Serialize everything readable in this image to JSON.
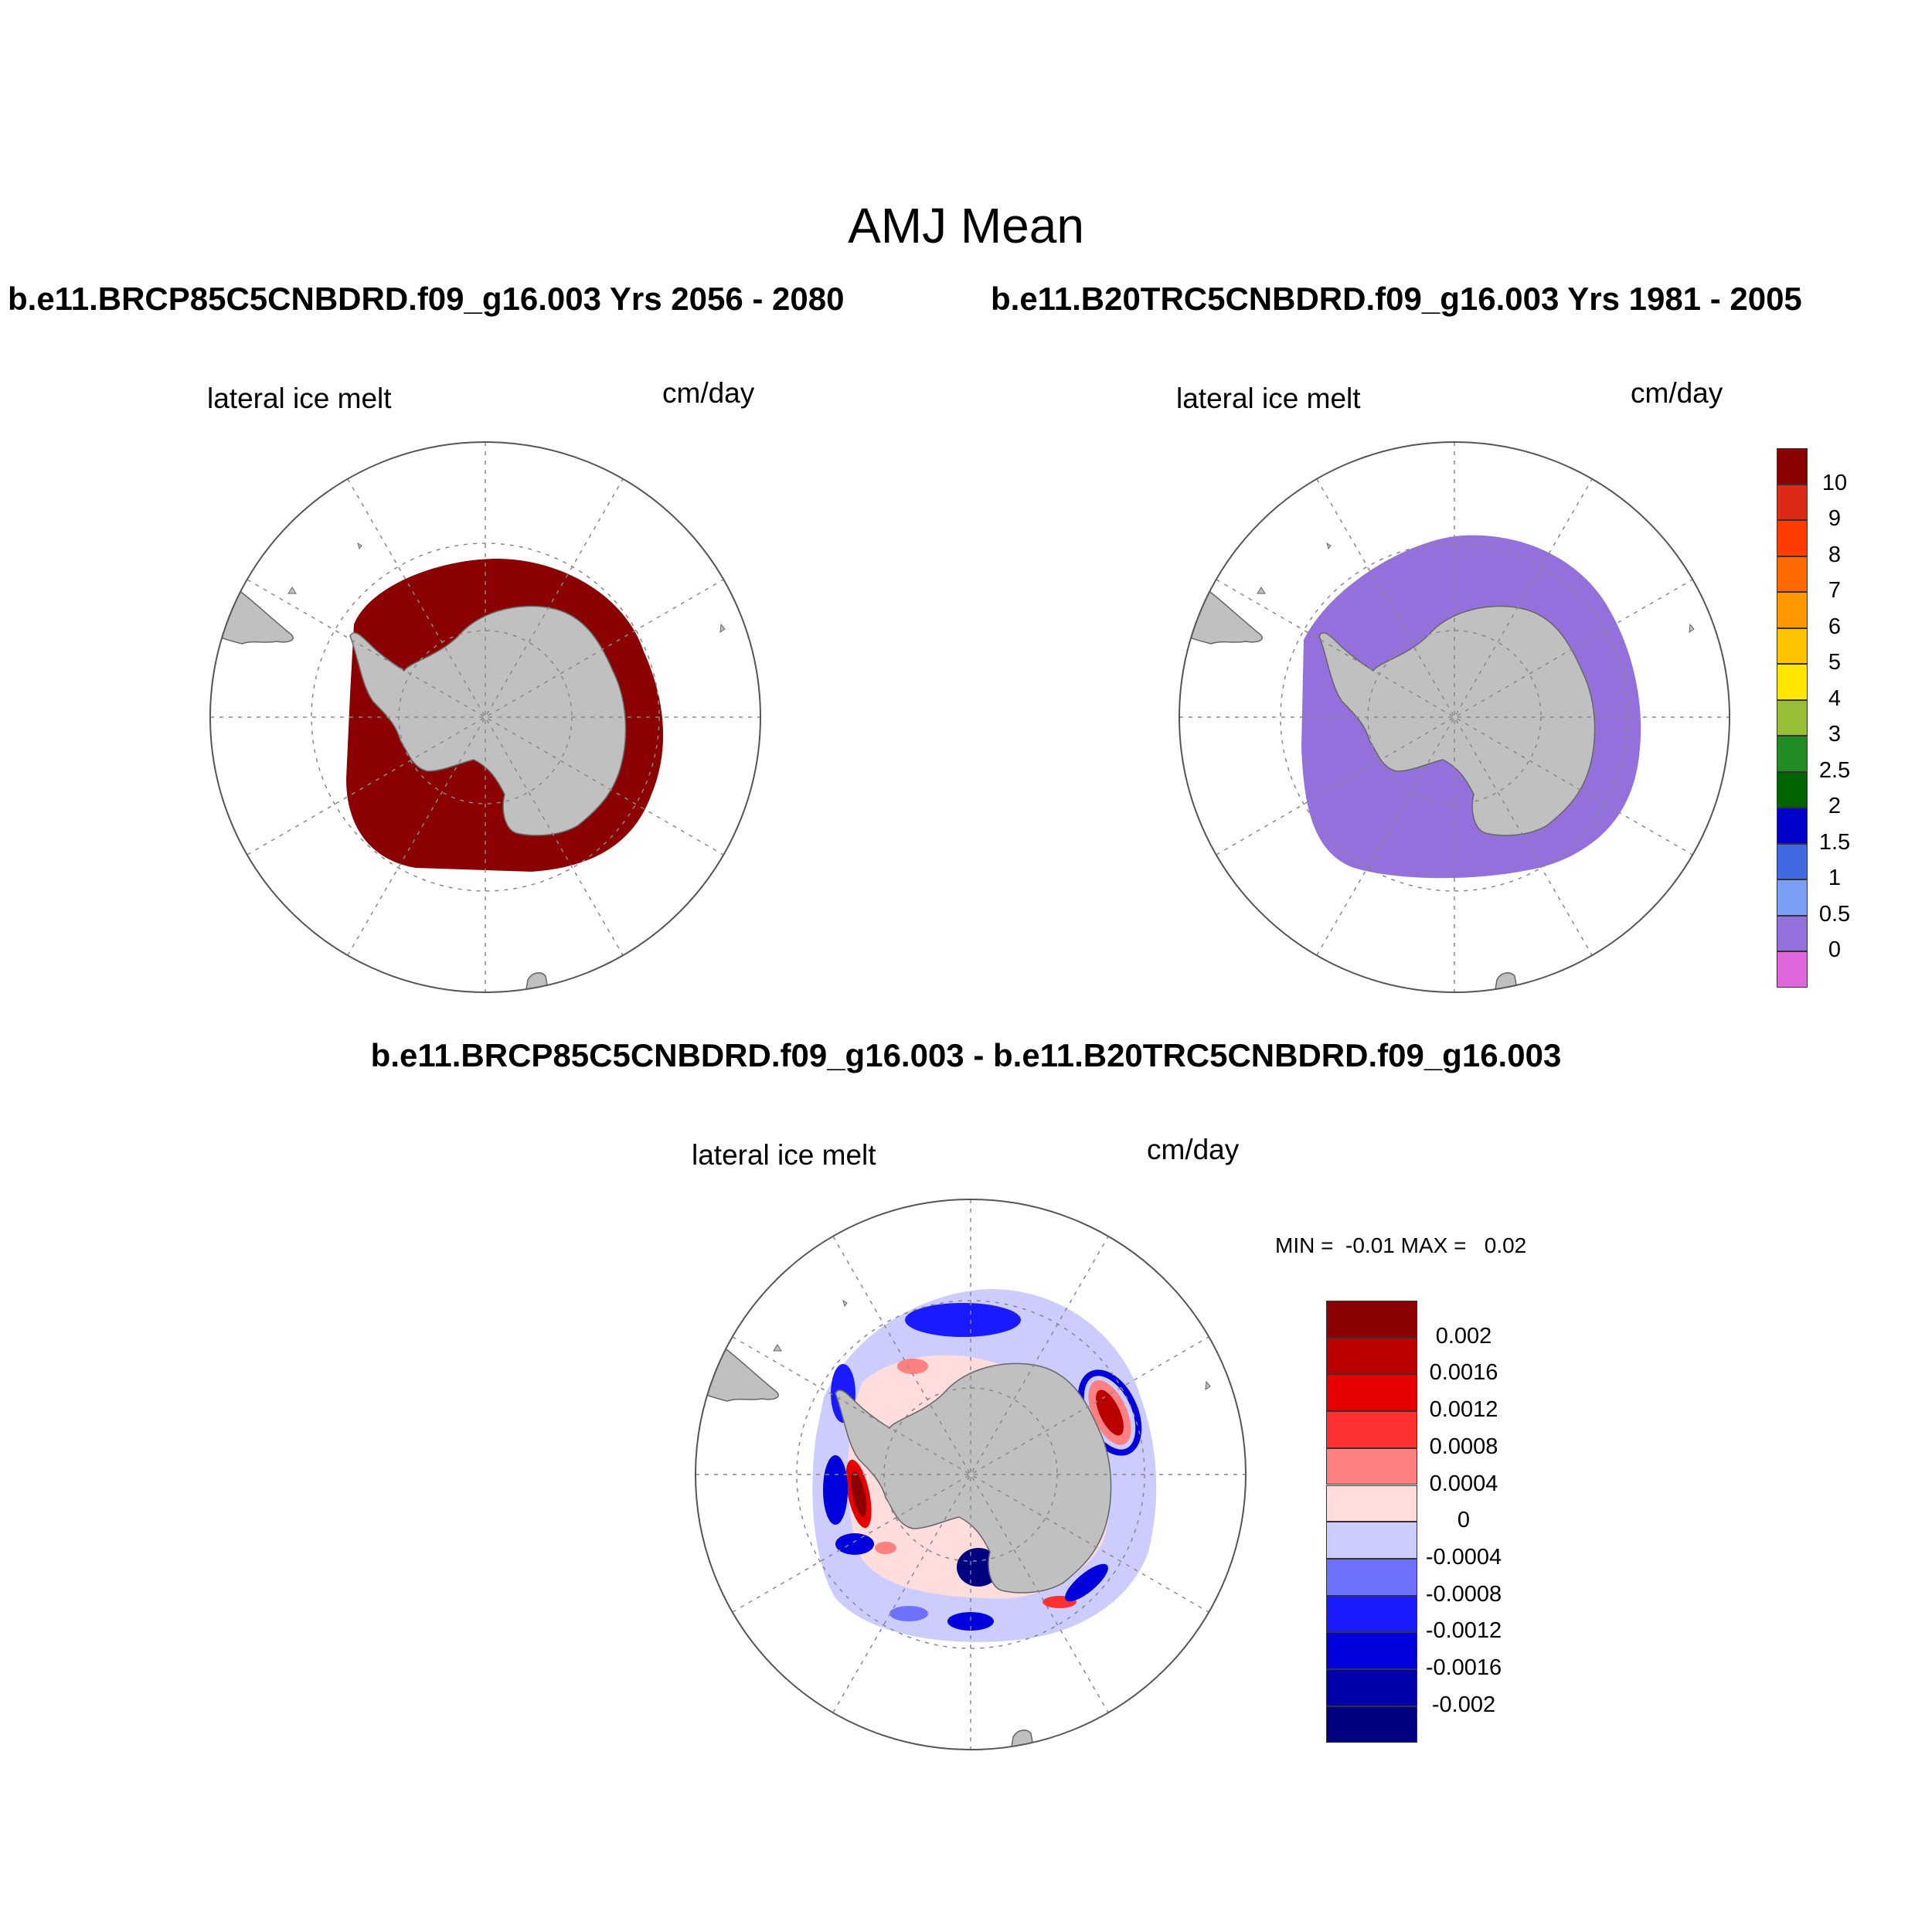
{
  "figure": {
    "title": "AMJ Mean",
    "case1_title": "b.e11.BRCP85C5CNBDRD.f09_g16.003  Yrs 2056 - 2080",
    "case2_title": "b.e11.B20TRC5CNBDRD.f09_g16.003  Yrs 1981 - 2005",
    "diff_title": "b.e11.BRCP85C5CNBDRD.f09_g16.003 - b.e11.B20TRC5CNBDRD.f09_g16.003"
  },
  "panels": [
    {
      "id": "future",
      "variable": "lateral ice melt",
      "units": "cm/day",
      "fill_color": "#8b0000"
    },
    {
      "id": "historical",
      "variable": "lateral ice melt",
      "units": "cm/day",
      "fill_color": "#9370db"
    },
    {
      "id": "difference",
      "variable": "lateral ice melt",
      "units": "cm/day",
      "min_max": "MIN =  -0.01 MAX =   0.02"
    }
  ],
  "colors": {
    "land": "#c0c0c0",
    "land_outline": "#666666",
    "grid": "#888888"
  },
  "chart_data": {
    "type": "heatmap",
    "projection": "south polar stereographic",
    "variable": "lateral ice melt",
    "units": "cm/day",
    "abs_colorbar": {
      "labels": [
        "10",
        "9",
        "8",
        "7",
        "6",
        "5",
        "4",
        "3",
        "2.5",
        "2",
        "1.5",
        "1",
        "0.5",
        "0"
      ],
      "colors": [
        "#8b0000",
        "#dd2a16",
        "#ff3c00",
        "#ff6a00",
        "#ff9700",
        "#ffc300",
        "#ffe600",
        "#98be38",
        "#228b22",
        "#006400",
        "#0000cd",
        "#4169e1",
        "#7b9ff5",
        "#9370db",
        "#e066dc"
      ]
    },
    "diff_colorbar": {
      "labels": [
        "0.002",
        "0.0016",
        "0.0012",
        "0.0008",
        "0.0004",
        "0",
        "-0.0004",
        "-0.0008",
        "-0.0012",
        "-0.0016",
        "-0.002"
      ],
      "colors": [
        "#8b0000",
        "#bb0000",
        "#e60000",
        "#ff3030",
        "#ff8080",
        "#ffdddd",
        "#ccccff",
        "#7070ff",
        "#1a1aff",
        "#0000dd",
        "#0000aa",
        "#000080"
      ]
    },
    "diff_min": -0.01,
    "diff_max": 0.02
  }
}
